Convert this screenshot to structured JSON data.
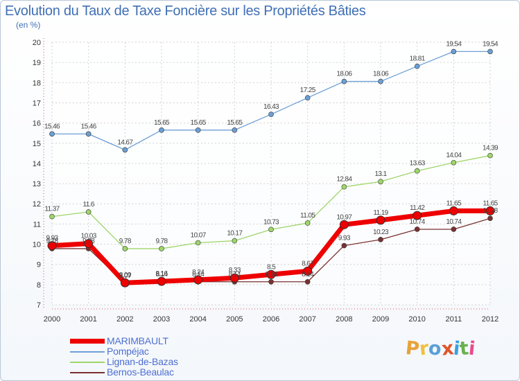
{
  "header": {
    "title": "Evolution du Taux de Taxe Foncière sur les Propriétés Bâties",
    "subtitle": "(en %)"
  },
  "logo": {
    "text": "Proxiti",
    "colors": [
      "#e8a23a",
      "#f0c040",
      "#5aa0d8",
      "#e0552d",
      "#3aa0dd",
      "#6ab04c",
      "#e74c8c"
    ]
  },
  "chart_data": {
    "type": "line",
    "title": "Evolution du Taux de Taxe Foncière sur les Propriétés Bâties",
    "ylabel": "(en %)",
    "xlabel": "",
    "ylim": [
      7,
      20
    ],
    "y_ticks": [
      7,
      8,
      9,
      10,
      11,
      12,
      13,
      14,
      15,
      16,
      17,
      18,
      19,
      20
    ],
    "x": [
      "2000",
      "2001",
      "2002",
      "2003",
      "2004",
      "2005",
      "2006",
      "2007",
      "2008",
      "2009",
      "2010",
      "2011",
      "2012"
    ],
    "grid": true,
    "legend_position": "bottom-left",
    "series": [
      {
        "name": "Pompéjac",
        "color": "#6c9fd6",
        "values": [
          15.46,
          15.46,
          14.67,
          15.65,
          15.65,
          15.65,
          16.43,
          17.25,
          18.06,
          18.06,
          18.81,
          19.54,
          19.54
        ],
        "labels": [
          "15.46",
          "15.46",
          "14.67",
          "15.65",
          "15.65",
          "15.65",
          "16.43",
          "17.25",
          "18.06",
          "18.06",
          "18.81",
          "19.54",
          "19.54"
        ]
      },
      {
        "name": "Lignan-de-Bazas",
        "color": "#9ed66a",
        "values": [
          11.37,
          11.6,
          9.78,
          9.78,
          10.07,
          10.17,
          10.73,
          11.05,
          12.84,
          13.1,
          13.63,
          14.04,
          14.39
        ],
        "labels": [
          "11.37",
          "11.6",
          "9.78",
          "9.78",
          "10.07",
          "10.17",
          "10.73",
          "11.05",
          "12.84",
          "13.1",
          "13.63",
          "14.04",
          "14.39"
        ]
      },
      {
        "name": "Bernos-Beaulac",
        "color": "#7a3131",
        "values": [
          9.78,
          9.78,
          8.07,
          8.14,
          8.14,
          8.14,
          8.14,
          8.14,
          9.93,
          10.23,
          10.74,
          10.74,
          11.28
        ],
        "labels": [
          "9.78",
          "9.78",
          "8.07",
          "8.14",
          "8.14",
          "8.14",
          "8.14",
          "8.14",
          "9.93",
          "10.23",
          "10.74",
          "10.74",
          "11.28"
        ]
      },
      {
        "name": "MARIMBAULT",
        "color": "#ee0000",
        "values": [
          9.93,
          10.03,
          8.09,
          8.16,
          8.24,
          8.33,
          8.5,
          8.67,
          10.97,
          11.19,
          11.42,
          11.65,
          11.65
        ],
        "labels": [
          "9.93",
          "10.03",
          "8.09",
          "8.16",
          "8.24",
          "8.33",
          "8.5",
          "8.67",
          "10.97",
          "11.19",
          "11.42",
          "11.65",
          "11.65"
        ]
      }
    ],
    "legend": [
      "MARIMBAULT",
      "Pompéjac",
      "Lignan-de-Bazas",
      "Bernos-Beaulac"
    ]
  }
}
